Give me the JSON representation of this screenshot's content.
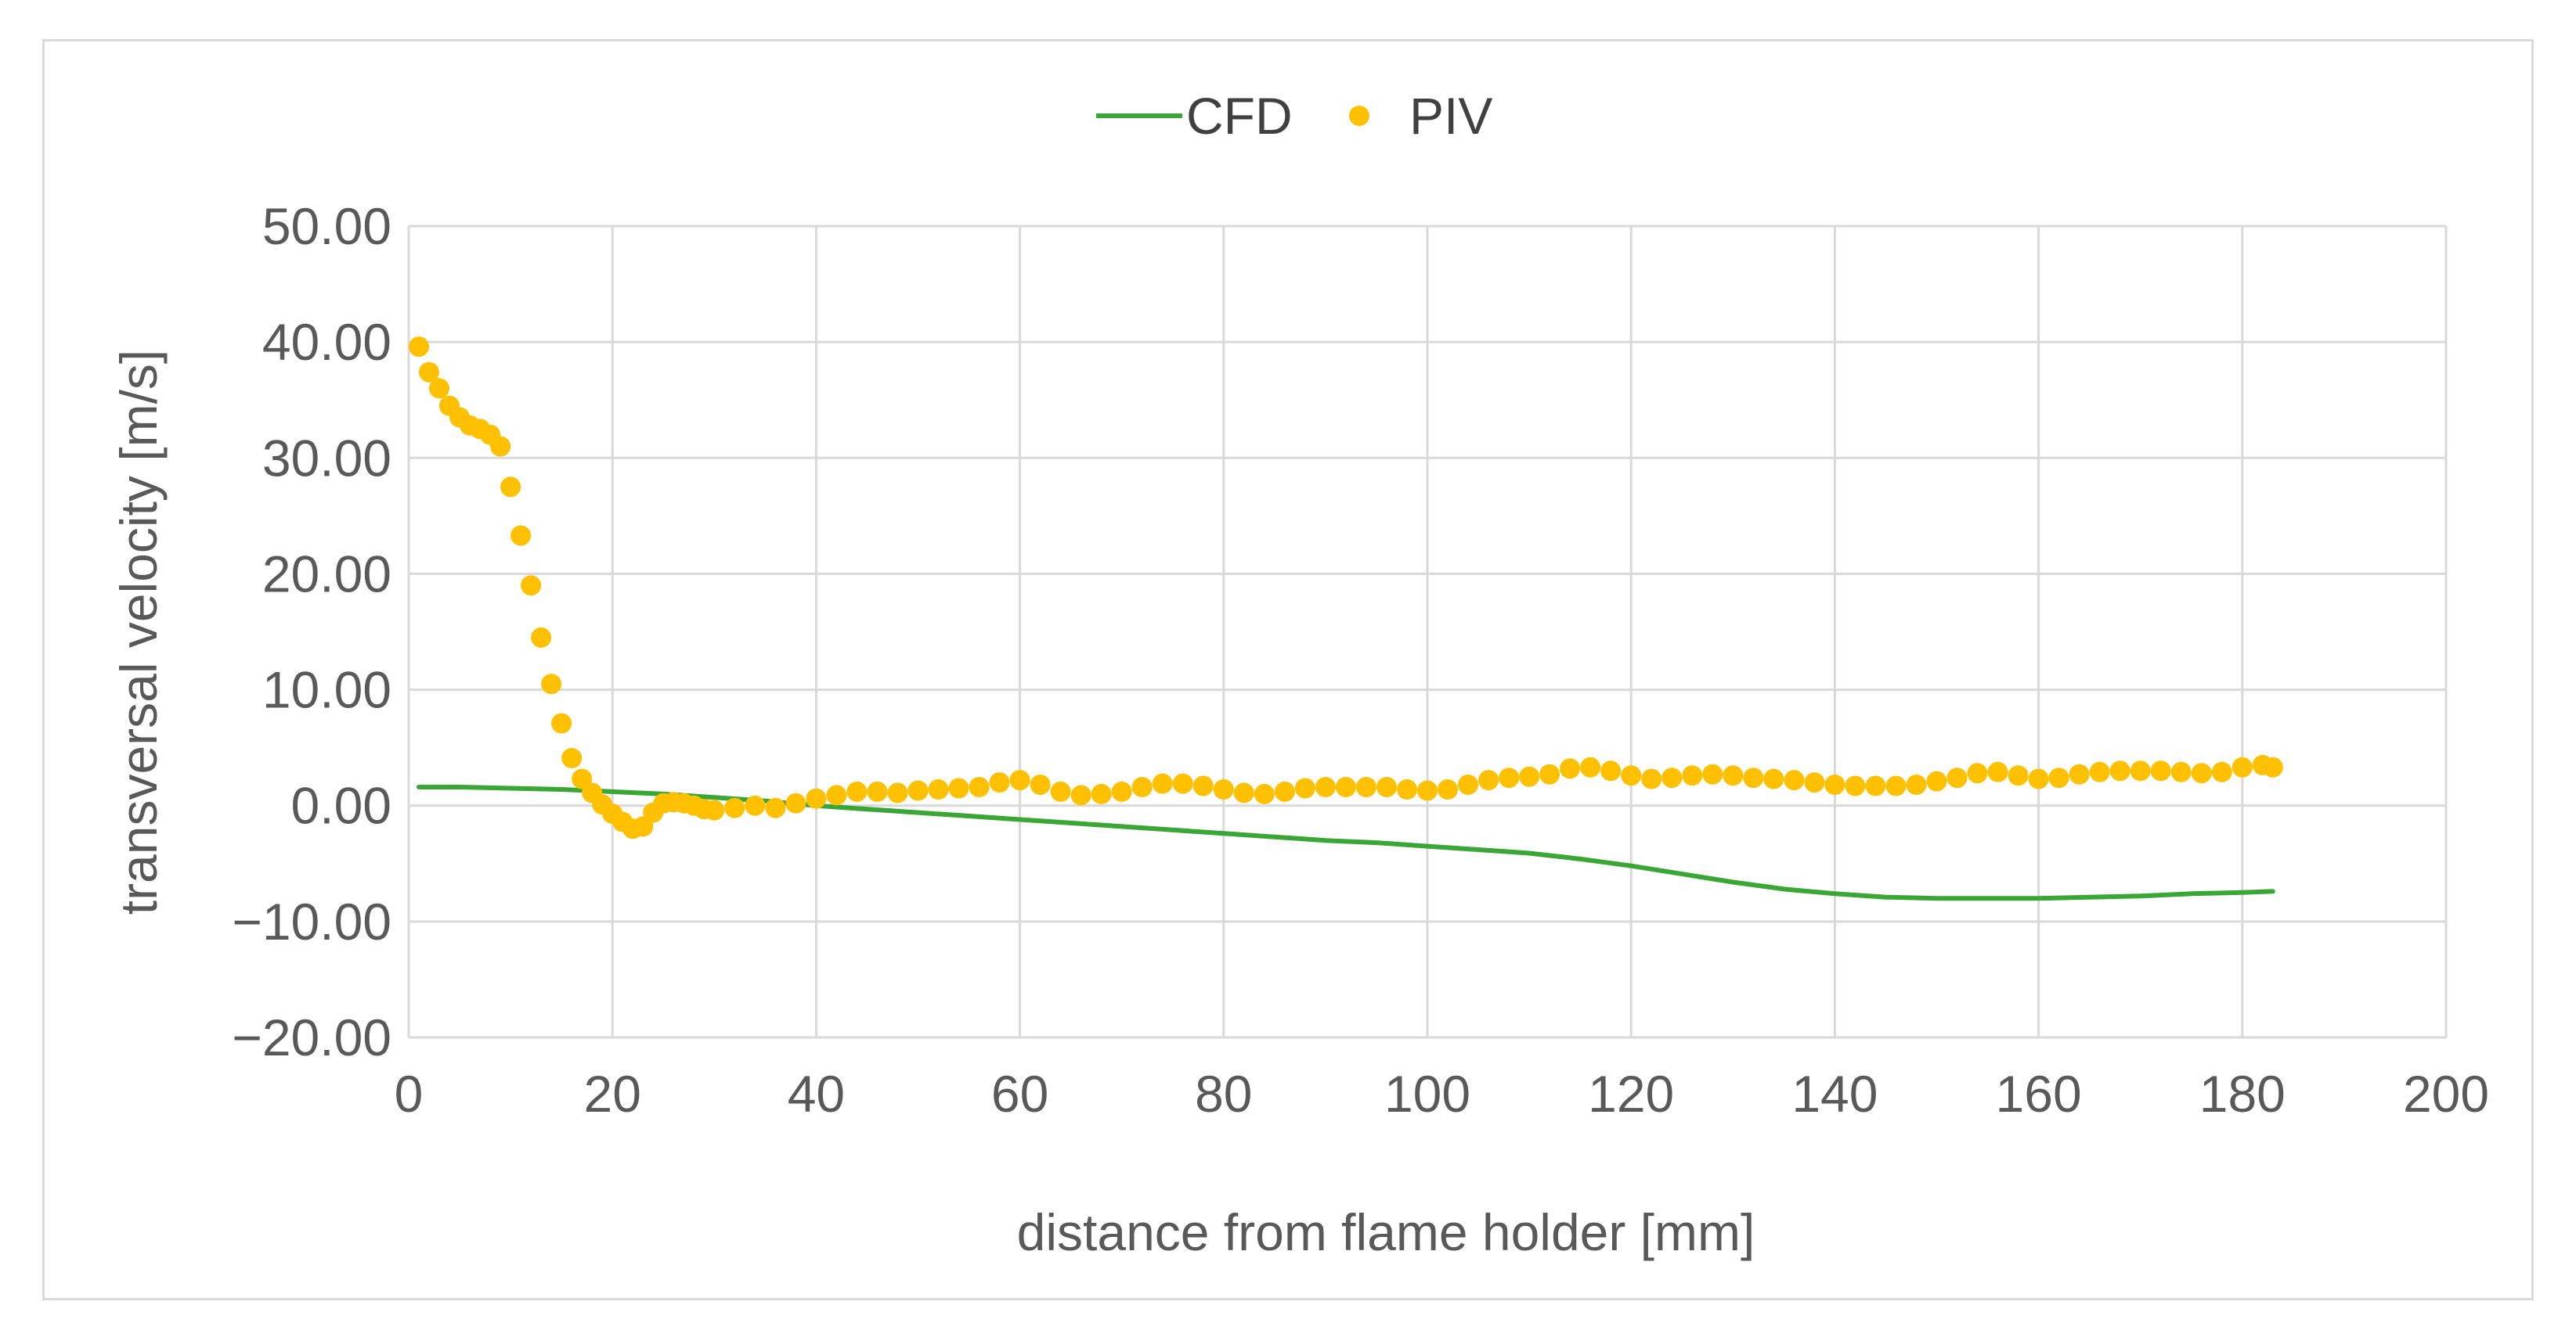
{
  "chart_data": {
    "type": "scatter",
    "title": "",
    "xlabel": "distance from flame holder [mm]",
    "ylabel": "transversal velocity [m/s]",
    "xlim": [
      0,
      200
    ],
    "ylim": [
      -20,
      50
    ],
    "x_ticks": [
      "0",
      "20",
      "40",
      "60",
      "80",
      "100",
      "120",
      "140",
      "160",
      "180",
      "200"
    ],
    "y_ticks": [
      "50.00",
      "40.00",
      "30.00",
      "20.00",
      "10.00",
      "0.00",
      "−10.00",
      "−20.00"
    ],
    "grid": true,
    "legend_position": "top",
    "series": [
      {
        "name": "CFD",
        "kind": "line",
        "color": "#3aa635",
        "points": [
          [
            1,
            1.6
          ],
          [
            5,
            1.6
          ],
          [
            10,
            1.5
          ],
          [
            15,
            1.4
          ],
          [
            20,
            1.2
          ],
          [
            25,
            1.0
          ],
          [
            30,
            0.7
          ],
          [
            35,
            0.4
          ],
          [
            40,
            0.0
          ],
          [
            45,
            -0.3
          ],
          [
            50,
            -0.6
          ],
          [
            55,
            -0.9
          ],
          [
            60,
            -1.2
          ],
          [
            65,
            -1.5
          ],
          [
            70,
            -1.8
          ],
          [
            75,
            -2.1
          ],
          [
            80,
            -2.4
          ],
          [
            85,
            -2.7
          ],
          [
            90,
            -3.0
          ],
          [
            95,
            -3.2
          ],
          [
            100,
            -3.5
          ],
          [
            105,
            -3.8
          ],
          [
            110,
            -4.1
          ],
          [
            115,
            -4.6
          ],
          [
            120,
            -5.2
          ],
          [
            125,
            -5.9
          ],
          [
            130,
            -6.6
          ],
          [
            135,
            -7.2
          ],
          [
            140,
            -7.6
          ],
          [
            145,
            -7.9
          ],
          [
            150,
            -8.0
          ],
          [
            155,
            -8.0
          ],
          [
            160,
            -8.0
          ],
          [
            165,
            -7.9
          ],
          [
            170,
            -7.8
          ],
          [
            175,
            -7.6
          ],
          [
            180,
            -7.5
          ],
          [
            183,
            -7.4
          ]
        ]
      },
      {
        "name": "PIV",
        "kind": "scatter",
        "color": "#ffc000",
        "points": [
          [
            1,
            39.6
          ],
          [
            2,
            37.4
          ],
          [
            3,
            36.0
          ],
          [
            4,
            34.5
          ],
          [
            5,
            33.5
          ],
          [
            6,
            32.8
          ],
          [
            7,
            32.5
          ],
          [
            8,
            32.0
          ],
          [
            9,
            31.0
          ],
          [
            10,
            27.5
          ],
          [
            11,
            23.3
          ],
          [
            12,
            19.0
          ],
          [
            13,
            14.5
          ],
          [
            14,
            10.5
          ],
          [
            15,
            7.1
          ],
          [
            16,
            4.1
          ],
          [
            17,
            2.3
          ],
          [
            18,
            1.1
          ],
          [
            19,
            0.1
          ],
          [
            20,
            -0.7
          ],
          [
            21,
            -1.4
          ],
          [
            22,
            -2.0
          ],
          [
            23,
            -1.8
          ],
          [
            24,
            -0.6
          ],
          [
            25,
            0.2
          ],
          [
            26,
            0.3
          ],
          [
            27,
            0.2
          ],
          [
            28,
            0.0
          ],
          [
            29,
            -0.3
          ],
          [
            30,
            -0.4
          ],
          [
            32,
            -0.2
          ],
          [
            34,
            0.0
          ],
          [
            36,
            -0.2
          ],
          [
            38,
            0.2
          ],
          [
            40,
            0.6
          ],
          [
            42,
            0.9
          ],
          [
            44,
            1.2
          ],
          [
            46,
            1.2
          ],
          [
            48,
            1.1
          ],
          [
            50,
            1.3
          ],
          [
            52,
            1.4
          ],
          [
            54,
            1.5
          ],
          [
            56,
            1.6
          ],
          [
            58,
            2.0
          ],
          [
            60,
            2.2
          ],
          [
            62,
            1.8
          ],
          [
            64,
            1.2
          ],
          [
            66,
            0.9
          ],
          [
            68,
            1.0
          ],
          [
            70,
            1.2
          ],
          [
            72,
            1.6
          ],
          [
            74,
            1.9
          ],
          [
            76,
            1.9
          ],
          [
            78,
            1.7
          ],
          [
            80,
            1.4
          ],
          [
            82,
            1.1
          ],
          [
            84,
            1.0
          ],
          [
            86,
            1.2
          ],
          [
            88,
            1.5
          ],
          [
            90,
            1.6
          ],
          [
            92,
            1.6
          ],
          [
            94,
            1.6
          ],
          [
            96,
            1.6
          ],
          [
            98,
            1.4
          ],
          [
            100,
            1.3
          ],
          [
            102,
            1.4
          ],
          [
            104,
            1.8
          ],
          [
            106,
            2.2
          ],
          [
            108,
            2.4
          ],
          [
            110,
            2.5
          ],
          [
            112,
            2.7
          ],
          [
            114,
            3.2
          ],
          [
            116,
            3.3
          ],
          [
            118,
            3.0
          ],
          [
            120,
            2.6
          ],
          [
            122,
            2.3
          ],
          [
            124,
            2.4
          ],
          [
            126,
            2.6
          ],
          [
            128,
            2.7
          ],
          [
            130,
            2.6
          ],
          [
            132,
            2.4
          ],
          [
            134,
            2.3
          ],
          [
            136,
            2.2
          ],
          [
            138,
            2.0
          ],
          [
            140,
            1.8
          ],
          [
            142,
            1.7
          ],
          [
            144,
            1.7
          ],
          [
            146,
            1.7
          ],
          [
            148,
            1.8
          ],
          [
            150,
            2.1
          ],
          [
            152,
            2.4
          ],
          [
            154,
            2.8
          ],
          [
            156,
            2.9
          ],
          [
            158,
            2.6
          ],
          [
            160,
            2.3
          ],
          [
            162,
            2.4
          ],
          [
            164,
            2.7
          ],
          [
            166,
            2.9
          ],
          [
            168,
            3.0
          ],
          [
            170,
            3.0
          ],
          [
            172,
            3.0
          ],
          [
            174,
            2.9
          ],
          [
            176,
            2.8
          ],
          [
            178,
            2.9
          ],
          [
            180,
            3.3
          ],
          [
            182,
            3.5
          ],
          [
            183,
            3.3
          ]
        ]
      }
    ]
  }
}
